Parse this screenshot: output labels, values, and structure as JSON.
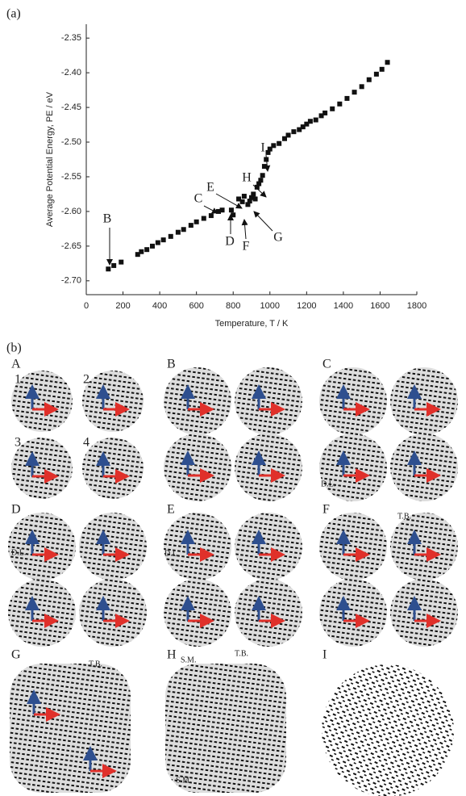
{
  "chart_data": {
    "type": "scatter",
    "panel_label": "(a)",
    "x_label": "Temperature, T / K",
    "y_label": "Average Potential Energy, PE / eV",
    "x": [
      120,
      150,
      190,
      280,
      300,
      330,
      360,
      390,
      420,
      460,
      500,
      530,
      570,
      600,
      640,
      680,
      720,
      740,
      790,
      800,
      830,
      850,
      860,
      880,
      890,
      900,
      910,
      920,
      930,
      940,
      950,
      960,
      970,
      980,
      990,
      1000,
      1020,
      1050,
      1080,
      1100,
      1130,
      1160,
      1180,
      1200,
      1220,
      1250,
      1280,
      1300,
      1340,
      1380,
      1420,
      1460,
      1500,
      1540,
      1580,
      1610,
      1640
    ],
    "values": [
      -2.683,
      -2.678,
      -2.673,
      -2.662,
      -2.658,
      -2.655,
      -2.65,
      -2.645,
      -2.641,
      -2.636,
      -2.63,
      -2.626,
      -2.62,
      -2.615,
      -2.61,
      -2.606,
      -2.6,
      -2.598,
      -2.598,
      -2.605,
      -2.582,
      -2.586,
      -2.578,
      -2.59,
      -2.585,
      -2.58,
      -2.575,
      -2.582,
      -2.565,
      -2.56,
      -2.555,
      -2.548,
      -2.535,
      -2.525,
      -2.515,
      -2.51,
      -2.505,
      -2.502,
      -2.495,
      -2.49,
      -2.485,
      -2.482,
      -2.478,
      -2.474,
      -2.47,
      -2.468,
      -2.462,
      -2.458,
      -2.452,
      -2.445,
      -2.437,
      -2.428,
      -2.42,
      -2.41,
      -2.402,
      -2.395,
      -2.385
    ],
    "color": "#111111",
    "xlim": [
      0,
      1800
    ],
    "xticks": [
      0,
      200,
      400,
      600,
      800,
      1000,
      1200,
      1400,
      1600,
      1800
    ],
    "ylim": [
      -2.72,
      -2.33
    ],
    "yticks": [
      -2.35,
      {
        "value": -2.4,
        "label": "-2.40"
      },
      -2.45,
      {
        "value": -2.5,
        "label": "-2.50"
      },
      -2.55,
      {
        "value": -2.6,
        "label": "-2.60"
      },
      -2.65,
      {
        "value": -2.7,
        "label": "-2.70"
      }
    ],
    "annotations": [
      "B",
      "C",
      "D",
      "E",
      "F",
      "G",
      "H",
      "I"
    ]
  },
  "panel_b": {
    "label": "(b)",
    "panels": [
      {
        "label": "A",
        "notes": [
          "1",
          "2",
          "3",
          "4"
        ]
      },
      {
        "label": "B",
        "notes": []
      },
      {
        "label": "C",
        "notes": [
          "D.L."
        ]
      },
      {
        "label": "D",
        "notes": [
          "D.L."
        ]
      },
      {
        "label": "E",
        "notes": [
          "D.L."
        ]
      },
      {
        "label": "F",
        "notes": [
          "T.B."
        ]
      },
      {
        "label": "G",
        "notes": [
          "T.B."
        ]
      },
      {
        "label": "H",
        "notes": [
          "T.B.",
          "S.M.",
          "S.M."
        ]
      },
      {
        "label": "I",
        "notes": []
      }
    ]
  }
}
